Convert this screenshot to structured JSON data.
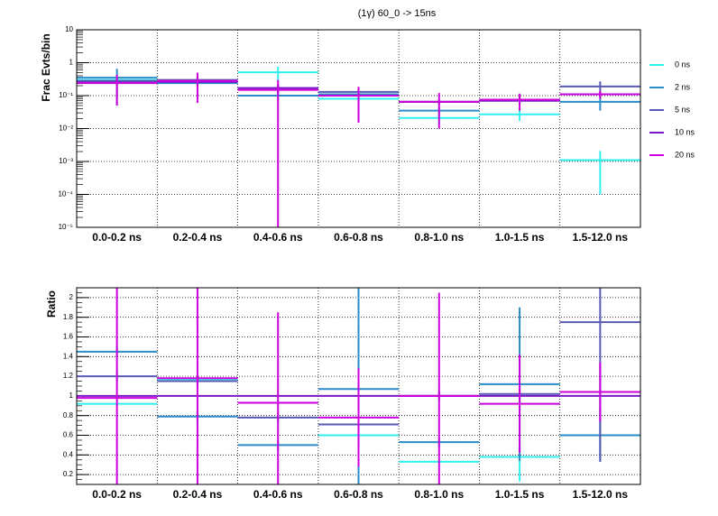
{
  "chart_data": [
    {
      "type": "step",
      "title": "(1γ) 60_0 -> 15ns",
      "ylabel": "Frac Evts/bin",
      "log_y": true,
      "grid": true,
      "legend": "right",
      "categories": [
        "0.0-0.2 ns",
        "0.2-0.4 ns",
        "0.4-0.6 ns",
        "0.6-0.8 ns",
        "0.8-1.0 ns",
        "1.0-1.5 ns",
        "1.5-12.0 ns"
      ],
      "ylim": [
        1e-05,
        10
      ],
      "yticks": [
        {
          "value": 1e-05,
          "label": "10⁻⁵"
        },
        {
          "value": 0.0001,
          "label": "10⁻⁴"
        },
        {
          "value": 0.001,
          "label": "10⁻³"
        },
        {
          "value": 0.01,
          "label": "10⁻²"
        },
        {
          "value": 0.1,
          "label": "10⁻¹"
        },
        1,
        10
      ],
      "series": [
        {
          "name": "0 ns",
          "color": "#33f0f0",
          "values": [
            0.3,
            0.27,
            0.51,
            0.08,
            0.021,
            0.027,
            0.0011
          ],
          "errors": [
            0.05,
            0.05,
            0.25,
            0.02,
            0.008,
            0.01,
            0.001
          ]
        },
        {
          "name": "2 ns",
          "color": "#2a8cc8",
          "values": [
            0.35,
            0.24,
            0.1,
            0.11,
            0.035,
            0.075,
            0.065
          ],
          "errors": [
            0.3,
            0.05,
            0.03,
            0.03,
            0.01,
            0.02,
            0.03
          ]
        },
        {
          "name": "5 ns",
          "color": "#5a5ab4",
          "values": [
            0.28,
            0.3,
            0.17,
            0.13,
            0.065,
            0.07,
            0.19
          ],
          "errors": [
            0.05,
            0.05,
            0.05,
            0.02,
            0.01,
            0.01,
            0.08
          ]
        },
        {
          "name": "10 ns",
          "color": "#7a18c8",
          "values": [
            0.25,
            0.26,
            0.17,
            0.1,
            0.065,
            0.07,
            0.11
          ],
          "errors": [
            0.05,
            0.05,
            0.05,
            0.03,
            0.01,
            0.01,
            0.02
          ]
        },
        {
          "name": "20 ns",
          "color": "#cc00dd",
          "values": [
            0.24,
            0.28,
            0.15,
            0.1,
            0.065,
            0.075,
            0.11
          ],
          "errors": [
            0.19,
            0.22,
            0.15,
            0.085,
            0.055,
            0.04,
            0.03
          ]
        }
      ]
    },
    {
      "type": "step",
      "ylabel": "Ratio",
      "log_y": false,
      "grid": true,
      "categories": [
        "0.0-0.2 ns",
        "0.2-0.4 ns",
        "0.4-0.6 ns",
        "0.6-0.8 ns",
        "0.8-1.0 ns",
        "1.0-1.5 ns",
        "1.5-12.0 ns"
      ],
      "ylim": [
        0.1,
        2.1
      ],
      "yticks": [
        0.2,
        0.4,
        0.6,
        0.8,
        1,
        1.2,
        1.4,
        1.6,
        1.8,
        2
      ],
      "series": [
        {
          "name": "0 ns",
          "color": "#33f0f0",
          "values": [
            0.92,
            1.17,
            null,
            0.6,
            0.33,
            0.38,
            null
          ],
          "errors": [
            0.02,
            0.02,
            null,
            0.03,
            0.02,
            0.25,
            null
          ]
        },
        {
          "name": "2 ns",
          "color": "#2a8cc8",
          "values": [
            1.45,
            0.79,
            0.5,
            1.07,
            0.53,
            1.12,
            0.6
          ],
          "errors": [
            0.05,
            0.05,
            0.05,
            1.1,
            0.05,
            0.78,
            0.27
          ]
        },
        {
          "name": "5 ns",
          "color": "#5a5ab4",
          "values": [
            1.2,
            1.15,
            0.78,
            0.71,
            1.0,
            1.02,
            1.75
          ],
          "errors": [
            0.05,
            0.05,
            0.05,
            0.05,
            0.05,
            0.05,
            1.42
          ]
        },
        {
          "name": "10 ns",
          "color": "#7a18c8",
          "values": [
            1,
            1,
            1,
            1,
            1,
            1,
            1
          ],
          "errors": [
            0,
            0,
            0,
            0,
            0,
            0,
            0
          ]
        },
        {
          "name": "20 ns",
          "color": "#cc00dd",
          "values": [
            0.98,
            1.18,
            0.93,
            0.78,
            1.0,
            0.92,
            1.04
          ],
          "errors": [
            1.2,
            1.2,
            0.92,
            0.5,
            1.05,
            0.5,
            0.3
          ]
        }
      ]
    }
  ]
}
